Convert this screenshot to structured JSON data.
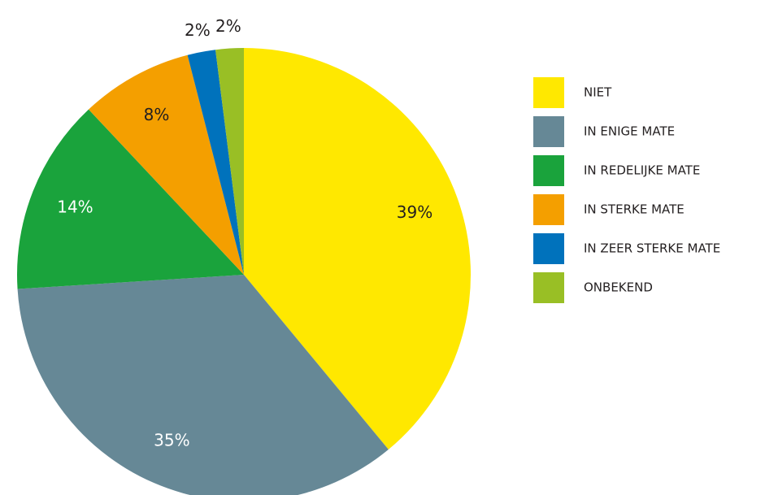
{
  "chart_data": {
    "type": "pie",
    "categories": [
      "NIET",
      "IN ENIGE MATE",
      "IN REDELIJKE MATE",
      "IN STERKE MATE",
      "IN ZEER STERKE MATE",
      "ONBEKEND"
    ],
    "values": [
      39,
      35,
      14,
      8,
      2,
      2
    ],
    "value_labels": [
      "39%",
      "35%",
      "14%",
      "8%",
      "2%",
      "2%"
    ],
    "colors": [
      "#ffe800",
      "#668896",
      "#1aa33c",
      "#f49f00",
      "#0072bc",
      "#99bf25"
    ],
    "legend": "right"
  }
}
